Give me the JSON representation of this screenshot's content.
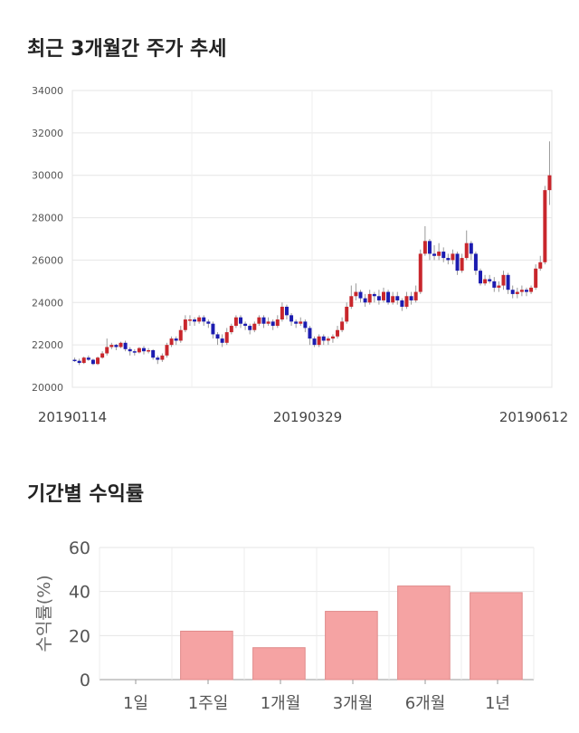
{
  "section_titles": {
    "price_chart": "최근 3개월간 주가 추세",
    "return_chart": "기간별 수익률"
  },
  "chart_data": [
    {
      "type": "candlestick",
      "title": "최근 3개월간 주가 추세",
      "y_ticks": [
        "34000",
        "32000",
        "30000",
        "28000",
        "26000",
        "24000",
        "22000",
        "20000"
      ],
      "ylim": [
        20000,
        34000
      ],
      "x_labels": [
        "20190114",
        "20190329",
        "20190612"
      ],
      "colors": {
        "up": "#c8262c",
        "down": "#1c1cb0"
      },
      "candles": [
        [
          21300,
          21250,
          21400,
          21200
        ],
        [
          21250,
          21150,
          21350,
          21050
        ],
        [
          21150,
          21400,
          21450,
          21100
        ],
        [
          21400,
          21300,
          21500,
          21250
        ],
        [
          21300,
          21100,
          21350,
          21050
        ],
        [
          21100,
          21400,
          21450,
          21050
        ],
        [
          21400,
          21600,
          21700,
          21350
        ],
        [
          21600,
          21900,
          22300,
          21500
        ],
        [
          21900,
          22000,
          22100,
          21800
        ],
        [
          22000,
          21900,
          22050,
          21750
        ],
        [
          21900,
          22100,
          22150,
          21850
        ],
        [
          22100,
          21800,
          22200,
          21700
        ],
        [
          21800,
          21700,
          21900,
          21500
        ],
        [
          21700,
          21650,
          21800,
          21500
        ],
        [
          21650,
          21850,
          21900,
          21600
        ],
        [
          21850,
          21700,
          21950,
          21550
        ],
        [
          21700,
          21750,
          21850,
          21600
        ],
        [
          21750,
          21400,
          21800,
          21300
        ],
        [
          21400,
          21300,
          21500,
          21100
        ],
        [
          21300,
          21500,
          21600,
          21200
        ],
        [
          21500,
          22000,
          22100,
          21400
        ],
        [
          22000,
          22300,
          22400,
          21900
        ],
        [
          22300,
          22200,
          22400,
          22000
        ],
        [
          22200,
          22700,
          22900,
          22100
        ],
        [
          22700,
          23200,
          23400,
          22600
        ],
        [
          23200,
          23200,
          23400,
          22900
        ],
        [
          23200,
          23100,
          23300,
          22900
        ],
        [
          23100,
          23300,
          23400,
          23000
        ],
        [
          23300,
          23100,
          23400,
          22900
        ],
        [
          23100,
          23000,
          23200,
          22800
        ],
        [
          23000,
          22500,
          23100,
          22300
        ],
        [
          22500,
          22300,
          22600,
          22000
        ],
        [
          22300,
          22100,
          22500,
          21900
        ],
        [
          22100,
          22600,
          22800,
          22000
        ],
        [
          22600,
          22900,
          23000,
          22500
        ],
        [
          22900,
          23300,
          23400,
          22800
        ],
        [
          23300,
          23000,
          23400,
          22800
        ],
        [
          23000,
          22900,
          23100,
          22700
        ],
        [
          22900,
          22700,
          23000,
          22500
        ],
        [
          22700,
          23000,
          23100,
          22600
        ],
        [
          23000,
          23300,
          23400,
          22900
        ],
        [
          23300,
          23000,
          23400,
          22800
        ],
        [
          23000,
          23100,
          23300,
          22900
        ],
        [
          23100,
          22900,
          23200,
          22700
        ],
        [
          22900,
          23200,
          23400,
          22800
        ],
        [
          23200,
          23800,
          24000,
          23100
        ],
        [
          23800,
          23400,
          23900,
          23200
        ],
        [
          23400,
          23100,
          23500,
          22900
        ],
        [
          23100,
          23000,
          23200,
          22800
        ],
        [
          23000,
          23100,
          23300,
          22900
        ],
        [
          23100,
          22800,
          23200,
          22600
        ],
        [
          22800,
          22300,
          22900,
          22000
        ],
        [
          22300,
          22000,
          22400,
          21900
        ],
        [
          22000,
          22400,
          22500,
          21900
        ],
        [
          22400,
          22200,
          22500,
          22000
        ],
        [
          22200,
          22300,
          22400,
          22000
        ],
        [
          22300,
          22400,
          22500,
          22100
        ],
        [
          22400,
          22700,
          22900,
          22300
        ],
        [
          22700,
          23100,
          23300,
          22600
        ],
        [
          23100,
          23800,
          24000,
          23000
        ],
        [
          23800,
          24300,
          24800,
          23700
        ],
        [
          24300,
          24500,
          24900,
          24100
        ],
        [
          24500,
          24200,
          24600,
          24000
        ],
        [
          24200,
          24000,
          24400,
          23800
        ],
        [
          24000,
          24400,
          24600,
          23900
        ],
        [
          24400,
          24300,
          24500,
          24000
        ],
        [
          24300,
          24100,
          24600,
          23900
        ],
        [
          24100,
          24500,
          24700,
          24000
        ],
        [
          24500,
          24000,
          24600,
          23900
        ],
        [
          24000,
          24300,
          24500,
          23900
        ],
        [
          24300,
          24100,
          24500,
          23900
        ],
        [
          24100,
          23800,
          24200,
          23600
        ],
        [
          23800,
          24300,
          24500,
          23700
        ],
        [
          24300,
          24100,
          24500,
          23900
        ],
        [
          24100,
          24500,
          24800,
          24000
        ],
        [
          24500,
          26300,
          26500,
          24400
        ],
        [
          26300,
          26900,
          27600,
          26200
        ],
        [
          26900,
          26300,
          27000,
          26000
        ],
        [
          26300,
          26200,
          26700,
          26000
        ],
        [
          26200,
          26400,
          26800,
          26000
        ],
        [
          26400,
          26100,
          26600,
          25900
        ],
        [
          26100,
          26000,
          26300,
          25800
        ],
        [
          26000,
          26300,
          26500,
          25800
        ],
        [
          26300,
          25500,
          26400,
          25300
        ],
        [
          25500,
          26100,
          26300,
          25400
        ],
        [
          26100,
          26800,
          27400,
          26000
        ],
        [
          26800,
          26300,
          26900,
          26000
        ],
        [
          26300,
          25500,
          26400,
          25300
        ],
        [
          25500,
          24900,
          25600,
          24800
        ],
        [
          24900,
          25100,
          25300,
          24800
        ],
        [
          25100,
          25000,
          25300,
          24900
        ],
        [
          25000,
          24700,
          25200,
          24500
        ],
        [
          24700,
          24800,
          25000,
          24500
        ],
        [
          24800,
          25300,
          25500,
          24600
        ],
        [
          25300,
          24600,
          25400,
          24400
        ],
        [
          24600,
          24400,
          24800,
          24200
        ],
        [
          24400,
          24500,
          24700,
          24200
        ],
        [
          24500,
          24600,
          24800,
          24300
        ],
        [
          24600,
          24500,
          24700,
          24300
        ],
        [
          24500,
          24700,
          24800,
          24400
        ],
        [
          24700,
          25600,
          25800,
          24600
        ],
        [
          25600,
          25900,
          26200,
          25500
        ],
        [
          25900,
          29300,
          29500,
          25800
        ],
        [
          29300,
          30000,
          31600,
          28600
        ]
      ]
    },
    {
      "type": "bar",
      "title": "기간별 수익률",
      "categories": [
        "1일",
        "1주일",
        "1개월",
        "3개월",
        "6개월",
        "1년"
      ],
      "values": [
        0,
        22,
        14.5,
        31,
        42.5,
        39.5
      ],
      "ylabel": "수익률(%)",
      "y_ticks": [
        "60",
        "40",
        "20",
        "0"
      ],
      "ylim": [
        0,
        60
      ],
      "colors": {
        "bar": "#f5a3a3",
        "edge": "#e08a8a"
      }
    }
  ]
}
